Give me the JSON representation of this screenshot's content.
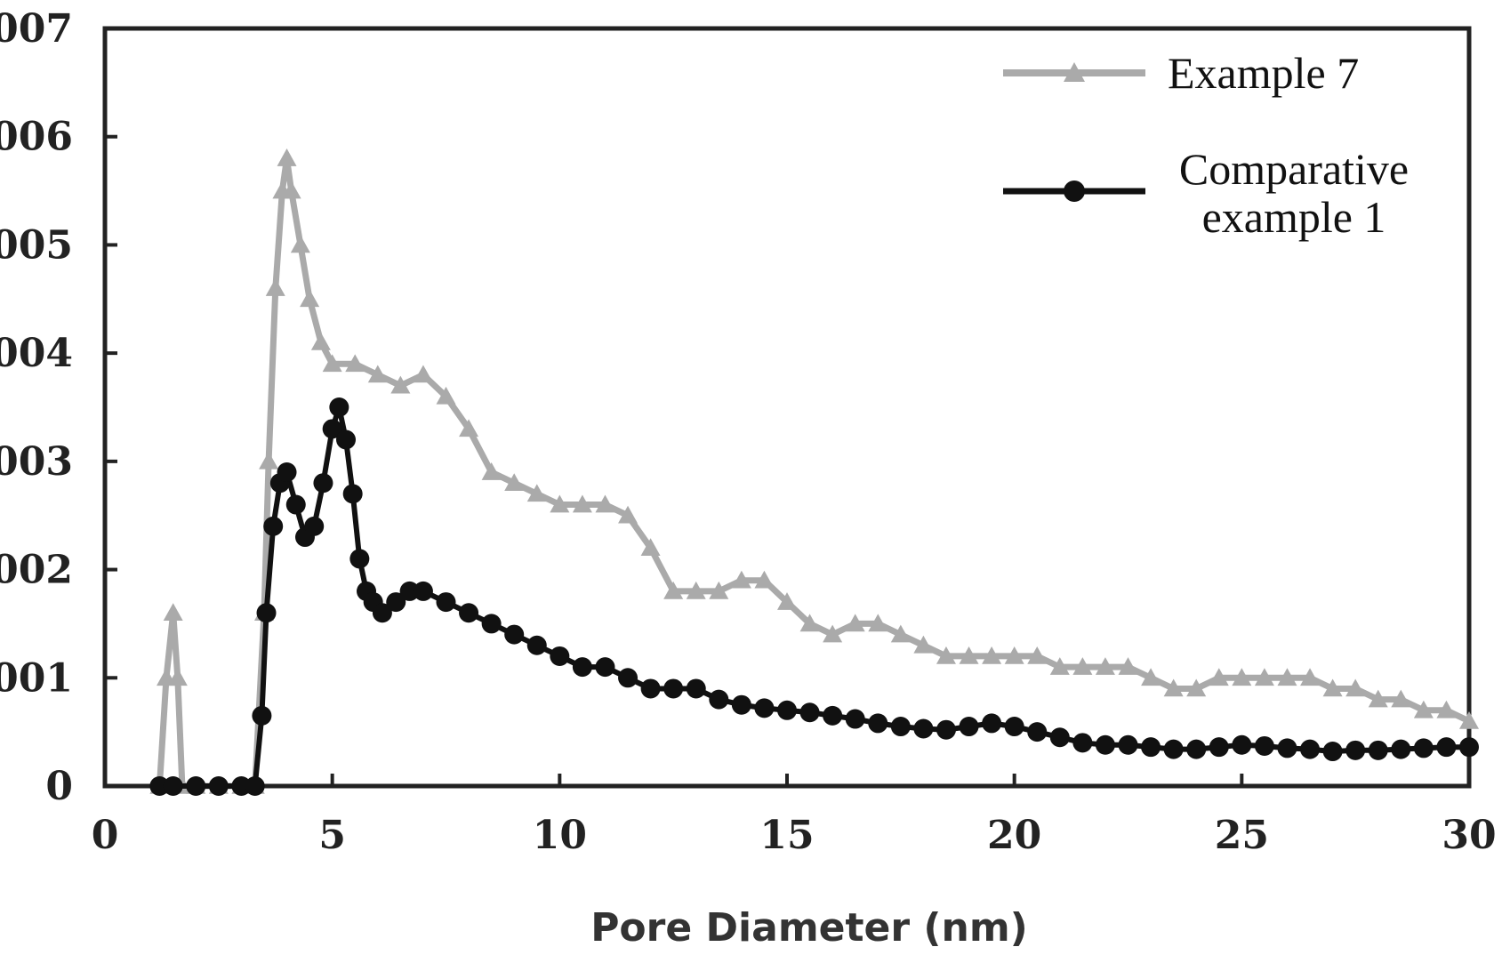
{
  "chart_data": {
    "type": "line",
    "title": "",
    "xlabel": "Pore Diameter (nm)",
    "ylabel": "",
    "xlim": [
      0,
      30
    ],
    "ylim": [
      0,
      0.007
    ],
    "x_ticks": [
      0,
      5,
      10,
      15,
      20,
      25,
      30
    ],
    "x_tick_labels": [
      "0",
      "5",
      "10",
      "15",
      "20",
      "25",
      "30"
    ],
    "y_ticks": [
      0,
      0.001,
      0.002,
      0.003,
      0.004,
      0.005,
      0.006,
      0.007
    ],
    "y_tick_labels": [
      "0",
      "001",
      "002",
      "003",
      "004",
      "005",
      "006",
      "007"
    ],
    "grid": false,
    "legend_position": "top-right",
    "series": [
      {
        "name": "Example 7",
        "color": "#aaaaaa",
        "marker": "triangle",
        "x": [
          1.2,
          1.35,
          1.5,
          1.6,
          1.7,
          2.0,
          2.5,
          3.0,
          3.3,
          3.5,
          3.6,
          3.75,
          3.9,
          4.0,
          4.1,
          4.3,
          4.5,
          4.75,
          5.0,
          5.5,
          6.0,
          6.5,
          7.0,
          7.5,
          8.0,
          8.5,
          9.0,
          9.5,
          10.0,
          10.5,
          11.0,
          11.5,
          12.0,
          12.5,
          13.0,
          13.5,
          14.0,
          14.5,
          15.0,
          15.5,
          16.0,
          16.5,
          17.0,
          17.5,
          18.0,
          18.5,
          19.0,
          19.5,
          20.0,
          20.5,
          21.0,
          21.5,
          22.0,
          22.5,
          23.0,
          23.5,
          24.0,
          24.5,
          25.0,
          25.5,
          26.0,
          26.5,
          27.0,
          27.5,
          28.0,
          28.5,
          29.0,
          29.5,
          30.0
        ],
        "y": [
          0.0,
          0.001,
          0.0016,
          0.001,
          0.0,
          0.0,
          0.0,
          0.0,
          0.0,
          0.0016,
          0.003,
          0.0046,
          0.0055,
          0.0058,
          0.0055,
          0.005,
          0.0045,
          0.0041,
          0.0039,
          0.0039,
          0.0038,
          0.0037,
          0.0038,
          0.0036,
          0.0033,
          0.0029,
          0.0028,
          0.0027,
          0.0026,
          0.0026,
          0.0026,
          0.0025,
          0.0022,
          0.0018,
          0.0018,
          0.0018,
          0.0019,
          0.0019,
          0.0017,
          0.0015,
          0.0014,
          0.0015,
          0.0015,
          0.0014,
          0.0013,
          0.0012,
          0.0012,
          0.0012,
          0.0012,
          0.0012,
          0.0011,
          0.0011,
          0.0011,
          0.0011,
          0.001,
          0.0009,
          0.0009,
          0.001,
          0.001,
          0.001,
          0.001,
          0.001,
          0.0009,
          0.0009,
          0.0008,
          0.0008,
          0.0007,
          0.0007,
          0.0006
        ]
      },
      {
        "name": "Comparative example 1",
        "color": "#111111",
        "marker": "circle",
        "x": [
          1.2,
          1.5,
          2.0,
          2.5,
          3.0,
          3.3,
          3.45,
          3.55,
          3.7,
          3.85,
          4.0,
          4.2,
          4.4,
          4.6,
          4.8,
          5.0,
          5.15,
          5.3,
          5.45,
          5.6,
          5.75,
          5.9,
          6.1,
          6.4,
          6.7,
          7.0,
          7.5,
          8.0,
          8.5,
          9.0,
          9.5,
          10.0,
          10.5,
          11.0,
          11.5,
          12.0,
          12.5,
          13.0,
          13.5,
          14.0,
          14.5,
          15.0,
          15.5,
          16.0,
          16.5,
          17.0,
          17.5,
          18.0,
          18.5,
          19.0,
          19.5,
          20.0,
          20.5,
          21.0,
          21.5,
          22.0,
          22.5,
          23.0,
          23.5,
          24.0,
          24.5,
          25.0,
          25.5,
          26.0,
          26.5,
          27.0,
          27.5,
          28.0,
          28.5,
          29.0,
          29.5,
          30.0
        ],
        "y": [
          0.0,
          0.0,
          0.0,
          0.0,
          0.0,
          0.0,
          0.00065,
          0.0016,
          0.0024,
          0.0028,
          0.0029,
          0.0026,
          0.0023,
          0.0024,
          0.0028,
          0.0033,
          0.0035,
          0.0032,
          0.0027,
          0.0021,
          0.0018,
          0.0017,
          0.0016,
          0.0017,
          0.0018,
          0.0018,
          0.0017,
          0.0016,
          0.0015,
          0.0014,
          0.0013,
          0.0012,
          0.0011,
          0.0011,
          0.001,
          0.0009,
          0.0009,
          0.0009,
          0.0008,
          0.00075,
          0.00072,
          0.0007,
          0.00068,
          0.00065,
          0.00062,
          0.00058,
          0.00055,
          0.00053,
          0.00052,
          0.00055,
          0.00058,
          0.00055,
          0.0005,
          0.00045,
          0.0004,
          0.00038,
          0.00038,
          0.00036,
          0.00034,
          0.00034,
          0.00036,
          0.00038,
          0.00037,
          0.00035,
          0.00034,
          0.00032,
          0.00033,
          0.00033,
          0.00034,
          0.00035,
          0.00036,
          0.00036
        ]
      }
    ]
  }
}
